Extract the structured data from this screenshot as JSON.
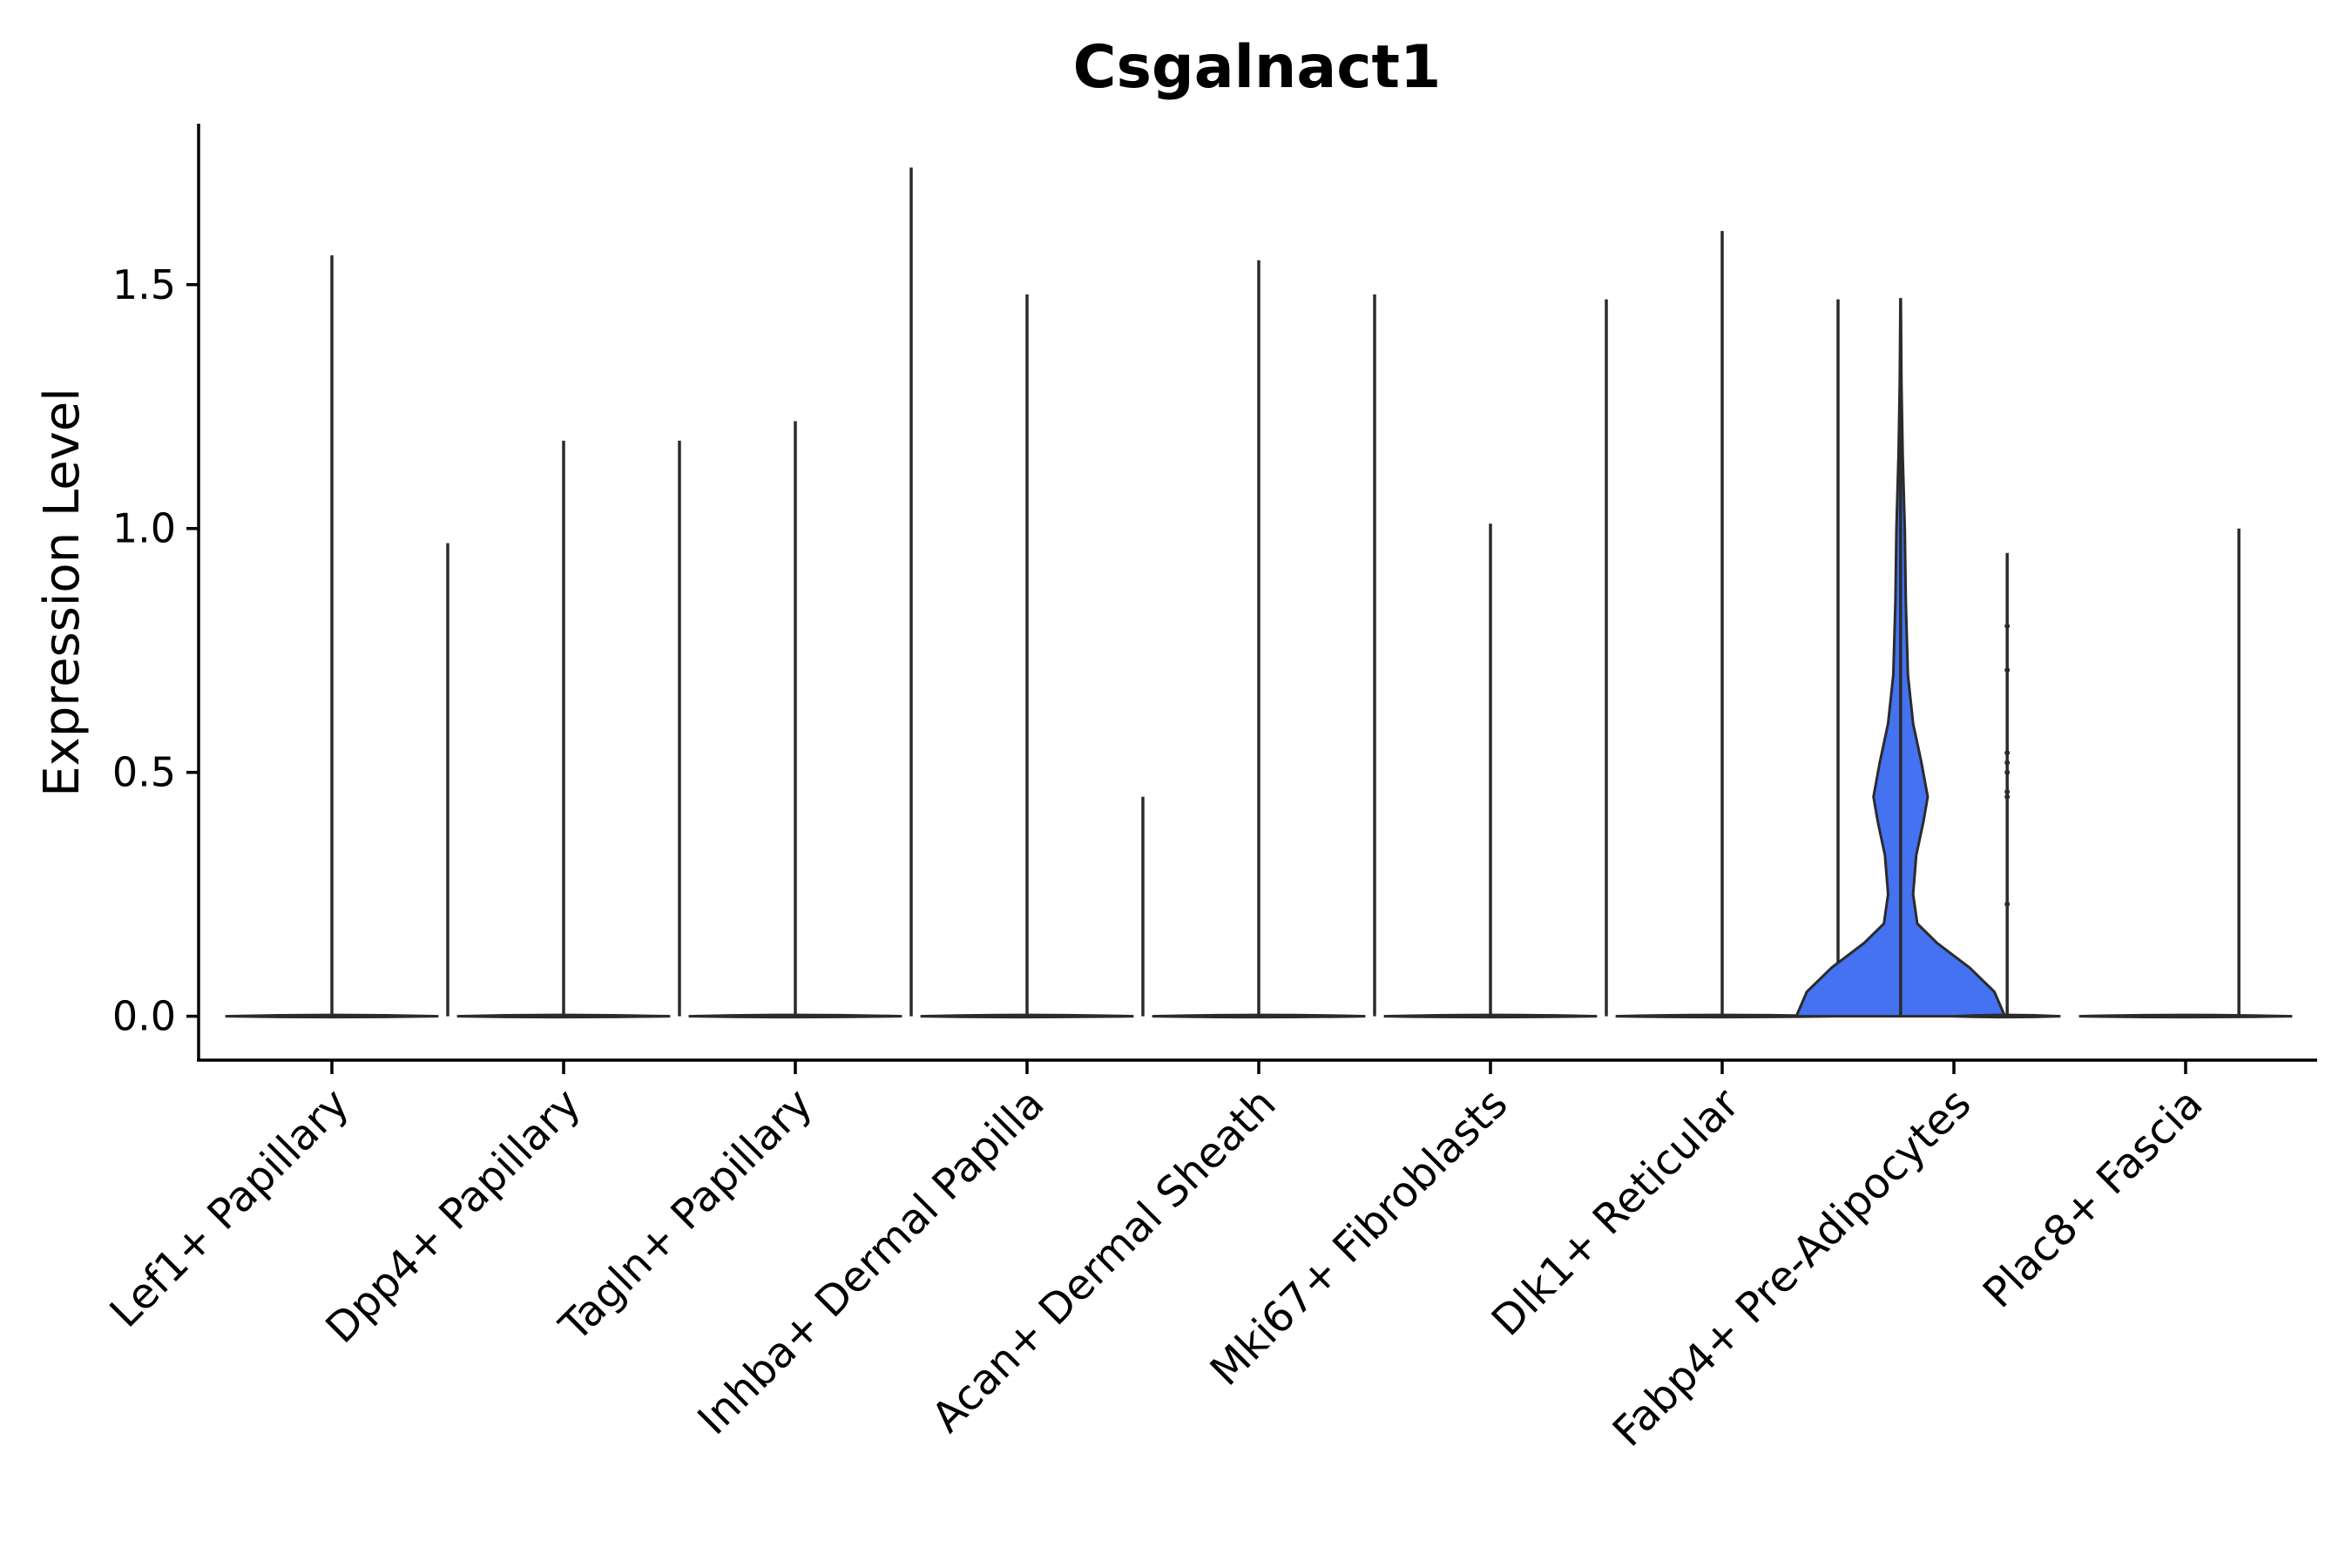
{
  "chart_data": {
    "type": "violin",
    "title": "Csgalnact1",
    "xlabel": "",
    "ylabel": "Expression Level",
    "ylim": [
      -0.09,
      1.83
    ],
    "yticks": [
      0.0,
      0.5,
      1.0,
      1.5
    ],
    "ytick_labels": [
      "0.0",
      "0.5",
      "1.0",
      "1.5"
    ],
    "highlight_color": "#4472f0",
    "line_color": "#2b2b2b",
    "categories": [
      "Lef1+ Papillary",
      "Dpp4+ Papillary",
      "Tagln+ Papillary",
      "Inhba+ Dermal Papilla",
      "Acan+ Dermal Sheath",
      "Mki67+ Fibroblasts",
      "Dlk1+ Reticular",
      "Fabp4+ Pre-Adipocytes",
      "Plac8+ Fascia"
    ],
    "series": [
      {
        "name": "Lef1+ Papillary",
        "max": 1.56,
        "density": [
          [
            0.0,
            1.0
          ],
          [
            0.004,
            0.0
          ]
        ]
      },
      {
        "name": "Dpp4+ Papillary",
        "max": 1.18,
        "density": [
          [
            0.0,
            1.0
          ],
          [
            0.004,
            0.0
          ]
        ]
      },
      {
        "name": "Tagln+ Papillary",
        "max": 1.22,
        "density": [
          [
            0.0,
            1.0
          ],
          [
            0.004,
            0.0
          ]
        ]
      },
      {
        "name": "Inhba+ Dermal Papilla",
        "max": 1.48,
        "density": [
          [
            0.0,
            1.0
          ],
          [
            0.004,
            0.0
          ]
        ]
      },
      {
        "name": "Acan+ Dermal Sheath",
        "max": 1.55,
        "density": [
          [
            0.0,
            1.0
          ],
          [
            0.004,
            0.0
          ]
        ]
      },
      {
        "name": "Mki67+ Fibroblasts",
        "max": 1.01,
        "density": [
          [
            0.0,
            1.0
          ],
          [
            0.004,
            0.0
          ]
        ]
      },
      {
        "name": "Dlk1+ Reticular",
        "max": 1.61,
        "density": [
          [
            0.0,
            1.0
          ],
          [
            0.004,
            0.0
          ]
        ]
      },
      {
        "name": "Fabp4+ Pre-Adipocytes",
        "max": 0.95,
        "density": [
          [
            0.0,
            1.0
          ],
          [
            0.004,
            0.0
          ]
        ],
        "outliers": [
          0.23,
          0.45,
          0.46,
          0.5,
          0.52,
          0.54,
          0.71,
          0.8
        ]
      },
      {
        "name": "Plac8+ Fascia",
        "max": 1.0,
        "density": [
          [
            0.0,
            1.0
          ],
          [
            0.004,
            0.0
          ]
        ]
      }
    ],
    "between_spikes": [
      {
        "after": "Lef1+ Papillary",
        "max": 0.97
      },
      {
        "after": "Dpp4+ Papillary",
        "max": 1.18
      },
      {
        "after": "Tagln+ Papillary",
        "max": 1.74
      },
      {
        "after": "Inhba+ Dermal Papilla",
        "max": 0.45
      },
      {
        "after": "Acan+ Dermal Sheath",
        "max": 1.48
      },
      {
        "after": "Mki67+ Fibroblasts",
        "max": 1.47
      },
      {
        "after": "Dlk1+ Reticular",
        "max": 1.47
      }
    ],
    "highlight_violin": {
      "name": "Fabp4+ Pre-Adipocytes",
      "max": 1.47,
      "density": [
        [
          0.0,
          1.0
        ],
        [
          0.05,
          0.9
        ],
        [
          0.1,
          0.66
        ],
        [
          0.15,
          0.35
        ],
        [
          0.19,
          0.16
        ],
        [
          0.25,
          0.12
        ],
        [
          0.33,
          0.15
        ],
        [
          0.4,
          0.22
        ],
        [
          0.45,
          0.26
        ],
        [
          0.52,
          0.2
        ],
        [
          0.6,
          0.12
        ],
        [
          0.7,
          0.07
        ],
        [
          0.85,
          0.05
        ],
        [
          1.0,
          0.04
        ],
        [
          1.15,
          0.02
        ],
        [
          1.3,
          0.008
        ],
        [
          1.47,
          0.002
        ]
      ]
    }
  }
}
